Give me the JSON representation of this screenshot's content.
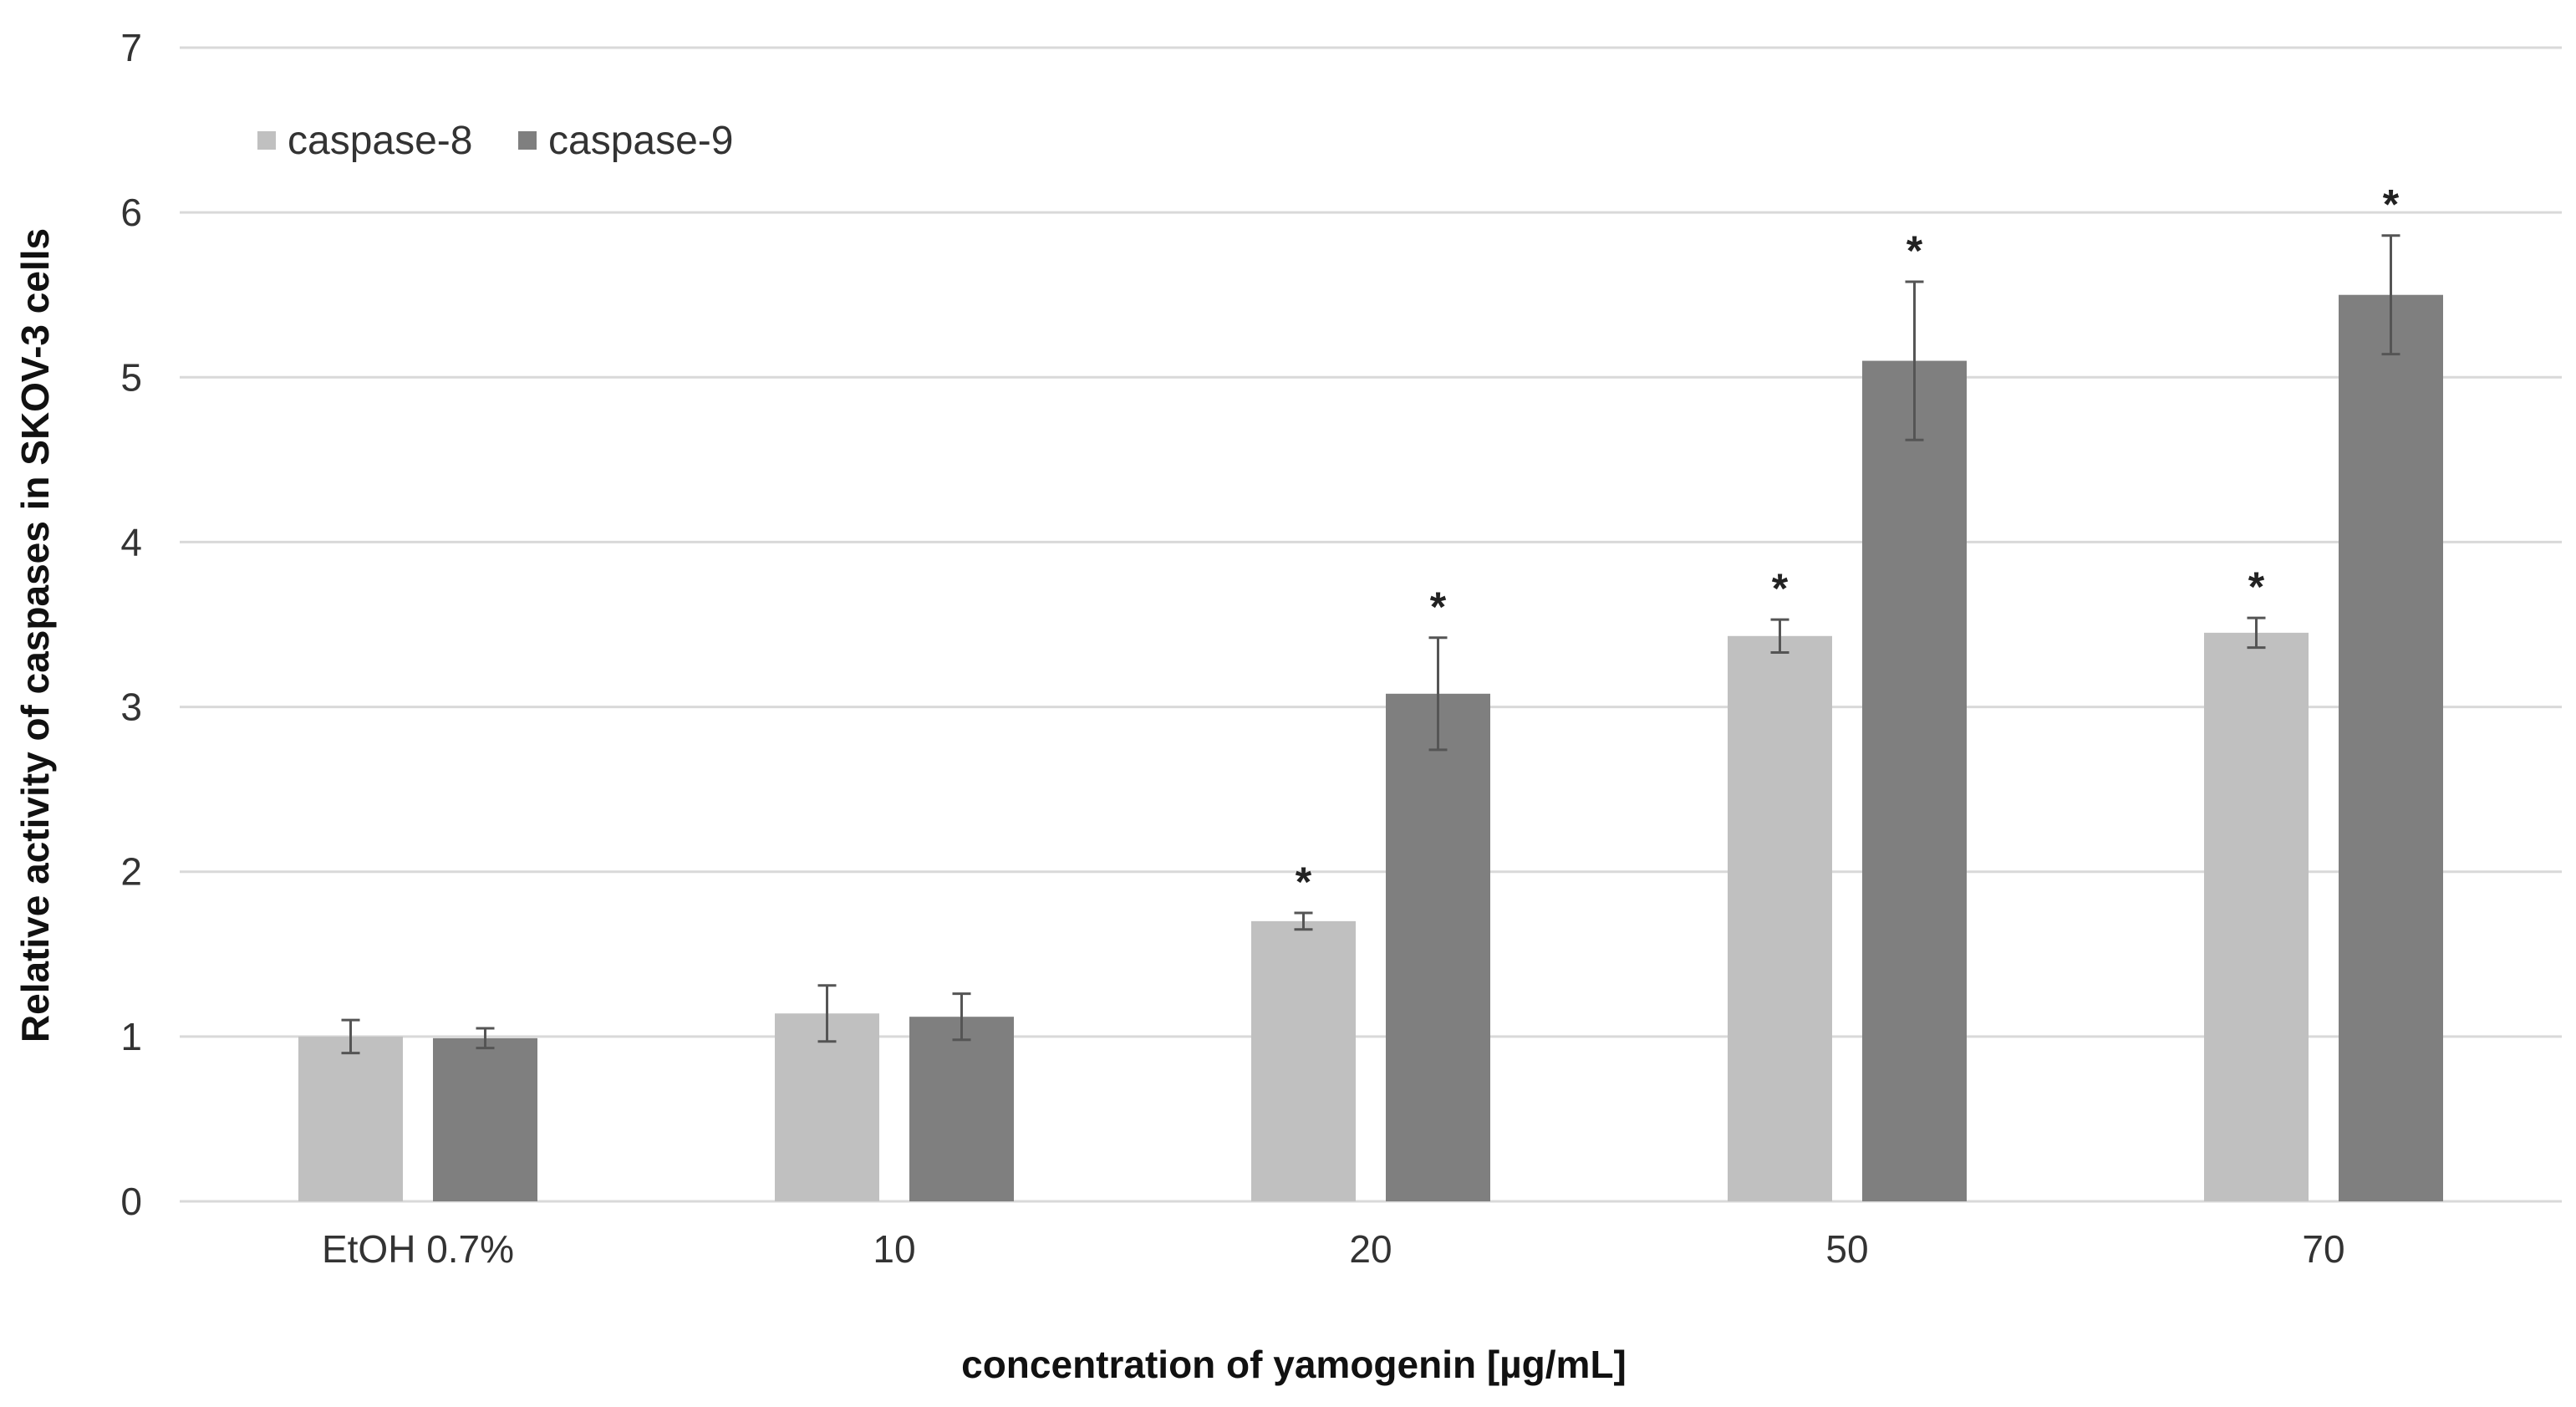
{
  "chart_data": {
    "type": "bar",
    "title": "",
    "xlabel": "concentration of yamogenin [µg/mL]",
    "ylabel": "Relative activity of caspases in SKOV-3 cells",
    "ylim": [
      0,
      7
    ],
    "yticks": [
      "0",
      "1",
      "2",
      "3",
      "4",
      "5",
      "6",
      "7"
    ],
    "grid": true,
    "legend_position": "top-left",
    "categories": [
      "EtOH 0.7%",
      "10",
      "20",
      "50",
      "70"
    ],
    "series": [
      {
        "name": "caspase-8",
        "color": "#c0c0c0",
        "values": [
          1.0,
          1.14,
          1.7,
          3.43,
          3.45
        ],
        "errors": [
          0.1,
          0.17,
          0.05,
          0.1,
          0.09
        ],
        "significance": [
          "",
          "",
          "*",
          "*",
          "*"
        ]
      },
      {
        "name": "caspase-9",
        "color": "#7f7f7f",
        "values": [
          0.99,
          1.12,
          3.08,
          5.1,
          5.5
        ],
        "errors": [
          0.06,
          0.14,
          0.34,
          0.48,
          0.36
        ],
        "significance": [
          "",
          "",
          "*",
          "*",
          "*"
        ]
      }
    ],
    "gridline_color": "#d9d9d9",
    "axis_color": "#d9d9d9",
    "errorbar_color": "#555555"
  }
}
